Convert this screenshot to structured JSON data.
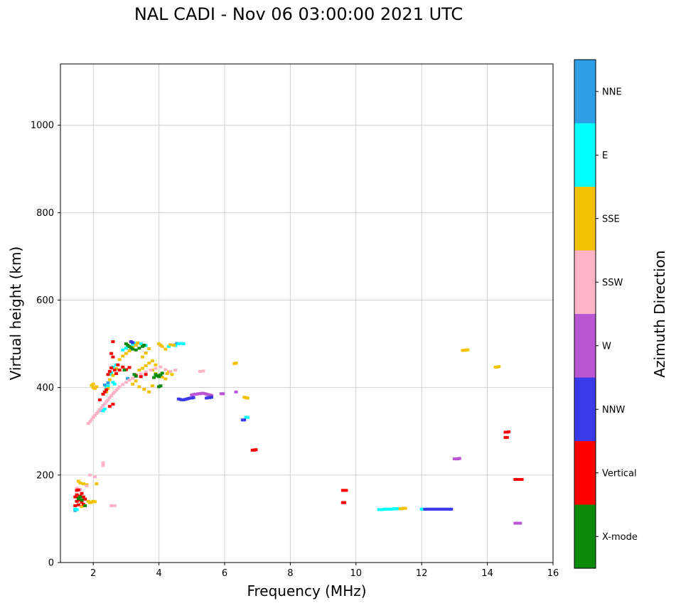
{
  "chart_data": {
    "type": "scatter",
    "title": "NAL CADI - Nov 06 03:00:00 2021 UTC",
    "xlabel": "Frequency (MHz)",
    "ylabel": "Virtual height (km)",
    "xlim": [
      1,
      16
    ],
    "ylim": [
      0,
      1140
    ],
    "xticks": [
      2,
      4,
      6,
      8,
      10,
      12,
      14,
      16
    ],
    "yticks": [
      0,
      200,
      400,
      600,
      800,
      1000
    ],
    "grid": true,
    "legend_position": "right-colorbar",
    "colorbar": {
      "label": "Azimuth Direction",
      "entries": [
        {
          "label": "NNE",
          "color": "#2E9FE6"
        },
        {
          "label": "E",
          "color": "#00FFFF"
        },
        {
          "label": "SSE",
          "color": "#F2C200"
        },
        {
          "label": "SSW",
          "color": "#FFB3C6"
        },
        {
          "label": "W",
          "color": "#BA55D3"
        },
        {
          "label": "NNW",
          "color": "#3A3AE8"
        },
        {
          "label": "Vertical",
          "color": "#FF0000"
        },
        {
          "label": "X-mode",
          "color": "#0B8A0B"
        }
      ]
    },
    "series": [
      {
        "name": "NNE",
        "color": "#2E9FE6",
        "points": [
          [
            1.45,
            119
          ],
          [
            2.2,
            348
          ],
          [
            2.35,
            406
          ],
          [
            2.45,
            411
          ],
          [
            3.05,
            421
          ],
          [
            4.5,
            498
          ],
          [
            4.55,
            501
          ]
        ]
      },
      {
        "name": "E",
        "color": "#00FFFF",
        "points": [
          [
            1.45,
            122
          ],
          [
            1.5,
            121
          ],
          [
            2.3,
            347
          ],
          [
            2.35,
            351
          ],
          [
            2.4,
            400
          ],
          [
            2.45,
            404
          ],
          [
            2.5,
            430
          ],
          [
            2.55,
            434
          ],
          [
            2.6,
            412
          ],
          [
            2.65,
            408
          ],
          [
            2.6,
            447
          ],
          [
            2.7,
            452
          ],
          [
            2.9,
            486
          ],
          [
            3.0,
            490
          ],
          [
            3.1,
            494
          ],
          [
            3.2,
            499
          ],
          [
            3.3,
            501
          ],
          [
            3.45,
            500
          ],
          [
            3.6,
            496
          ],
          [
            4.3,
            494
          ],
          [
            4.5,
            496
          ],
          [
            4.6,
            500
          ],
          [
            4.7,
            501
          ],
          [
            4.75,
            500
          ],
          [
            6.65,
            332
          ],
          [
            6.7,
            332
          ],
          [
            10.7,
            121
          ],
          [
            10.75,
            121
          ],
          [
            10.8,
            121
          ],
          [
            10.85,
            122
          ],
          [
            10.9,
            122
          ],
          [
            10.95,
            122
          ],
          [
            11.0,
            122
          ],
          [
            11.05,
            122
          ],
          [
            11.1,
            122
          ],
          [
            11.15,
            123
          ],
          [
            11.2,
            123
          ],
          [
            11.25,
            123
          ],
          [
            11.3,
            123
          ],
          [
            12.0,
            122
          ],
          [
            12.05,
            122
          ]
        ]
      },
      {
        "name": "SSE",
        "color": "#F2C200",
        "points": [
          [
            1.55,
            186
          ],
          [
            1.6,
            182
          ],
          [
            1.7,
            180
          ],
          [
            1.8,
            178
          ],
          [
            2.1,
            180
          ],
          [
            1.85,
            140
          ],
          [
            1.9,
            137
          ],
          [
            1.95,
            138
          ],
          [
            2.0,
            140
          ],
          [
            2.05,
            139
          ],
          [
            1.65,
            128
          ],
          [
            1.95,
            405
          ],
          [
            2.0,
            400
          ],
          [
            2.0,
            408
          ],
          [
            2.05,
            398
          ],
          [
            2.1,
            402
          ],
          [
            2.4,
            390
          ],
          [
            2.45,
            398
          ],
          [
            2.5,
            418
          ],
          [
            2.6,
            428
          ],
          [
            2.7,
            443
          ],
          [
            2.8,
            464
          ],
          [
            2.9,
            472
          ],
          [
            3.0,
            478
          ],
          [
            3.1,
            484
          ],
          [
            3.2,
            492
          ],
          [
            3.3,
            497
          ],
          [
            3.35,
            502
          ],
          [
            3.5,
            470
          ],
          [
            3.6,
            479
          ],
          [
            3.7,
            489
          ],
          [
            3.8,
            461
          ],
          [
            3.9,
            452
          ],
          [
            4.0,
            500
          ],
          [
            4.05,
            497
          ],
          [
            4.1,
            494
          ],
          [
            4.2,
            488
          ],
          [
            4.35,
            498
          ],
          [
            4.45,
            497
          ],
          [
            3.2,
            408
          ],
          [
            3.3,
            415
          ],
          [
            3.4,
            440
          ],
          [
            3.4,
            402
          ],
          [
            3.5,
            444
          ],
          [
            3.55,
            396
          ],
          [
            3.6,
            450
          ],
          [
            3.7,
            456
          ],
          [
            3.7,
            390
          ],
          [
            3.8,
            440
          ],
          [
            3.8,
            404
          ],
          [
            3.9,
            432
          ],
          [
            4.0,
            428
          ],
          [
            4.1,
            424
          ],
          [
            4.2,
            420
          ],
          [
            4.25,
            432
          ],
          [
            4.3,
            436
          ],
          [
            4.4,
            430
          ],
          [
            6.3,
            455
          ],
          [
            6.35,
            456
          ],
          [
            6.6,
            378
          ],
          [
            6.65,
            377
          ],
          [
            6.7,
            376
          ],
          [
            11.35,
            123
          ],
          [
            11.4,
            123
          ],
          [
            11.45,
            124
          ],
          [
            11.5,
            124
          ],
          [
            13.25,
            485
          ],
          [
            13.3,
            485
          ],
          [
            13.35,
            486
          ],
          [
            13.4,
            486
          ],
          [
            14.25,
            447
          ],
          [
            14.3,
            447
          ],
          [
            14.35,
            448
          ]
        ]
      },
      {
        "name": "SSW",
        "color": "#FFB3C6",
        "points": [
          [
            1.5,
            170
          ],
          [
            1.6,
            167
          ],
          [
            1.8,
            175
          ],
          [
            1.9,
            200
          ],
          [
            2.05,
            196
          ],
          [
            2.3,
            228
          ],
          [
            2.3,
            222
          ],
          [
            2.55,
            130
          ],
          [
            2.6,
            130
          ],
          [
            2.65,
            130
          ],
          [
            1.85,
            318
          ],
          [
            1.9,
            322
          ],
          [
            1.95,
            327
          ],
          [
            2.0,
            332
          ],
          [
            2.05,
            336
          ],
          [
            2.1,
            341
          ],
          [
            2.15,
            345
          ],
          [
            2.2,
            350
          ],
          [
            2.25,
            354
          ],
          [
            2.3,
            359
          ],
          [
            2.35,
            363
          ],
          [
            2.4,
            368
          ],
          [
            2.45,
            372
          ],
          [
            2.5,
            377
          ],
          [
            2.55,
            381
          ],
          [
            2.6,
            386
          ],
          [
            2.65,
            390
          ],
          [
            2.7,
            394
          ],
          [
            2.75,
            398
          ],
          [
            2.8,
            402
          ],
          [
            2.9,
            407
          ],
          [
            3.0,
            412
          ],
          [
            3.1,
            417
          ],
          [
            3.2,
            421
          ],
          [
            3.3,
            426
          ],
          [
            3.45,
            431
          ],
          [
            3.6,
            436
          ],
          [
            3.75,
            440
          ],
          [
            3.9,
            444
          ],
          [
            4.05,
            447
          ],
          [
            4.2,
            441
          ],
          [
            4.35,
            437
          ],
          [
            4.5,
            440
          ],
          [
            5.25,
            437
          ],
          [
            5.35,
            438
          ]
        ]
      },
      {
        "name": "W",
        "color": "#BA55D3",
        "points": [
          [
            5.0,
            383
          ],
          [
            5.05,
            384
          ],
          [
            5.1,
            385
          ],
          [
            5.15,
            385
          ],
          [
            5.2,
            386
          ],
          [
            5.25,
            386
          ],
          [
            5.3,
            387
          ],
          [
            5.35,
            387
          ],
          [
            5.4,
            386
          ],
          [
            5.45,
            385
          ],
          [
            5.5,
            384
          ],
          [
            5.55,
            383
          ],
          [
            5.6,
            382
          ],
          [
            5.9,
            386
          ],
          [
            5.95,
            386
          ],
          [
            6.35,
            390
          ],
          [
            13.0,
            237
          ],
          [
            13.05,
            237
          ],
          [
            13.1,
            237
          ],
          [
            13.15,
            238
          ],
          [
            14.85,
            90
          ],
          [
            14.9,
            90
          ],
          [
            14.95,
            90
          ],
          [
            15.0,
            90
          ]
        ]
      },
      {
        "name": "NNW",
        "color": "#3A3AE8",
        "points": [
          [
            3.15,
            505
          ],
          [
            3.2,
            503
          ],
          [
            4.6,
            374
          ],
          [
            4.65,
            373
          ],
          [
            4.7,
            372
          ],
          [
            4.75,
            372
          ],
          [
            4.8,
            373
          ],
          [
            4.85,
            374
          ],
          [
            4.9,
            375
          ],
          [
            4.95,
            376
          ],
          [
            5.0,
            376
          ],
          [
            5.05,
            377
          ],
          [
            5.45,
            376
          ],
          [
            5.5,
            377
          ],
          [
            5.55,
            377
          ],
          [
            5.6,
            378
          ],
          [
            6.55,
            326
          ],
          [
            6.6,
            326
          ],
          [
            12.1,
            122
          ],
          [
            12.15,
            122
          ],
          [
            12.2,
            122
          ],
          [
            12.25,
            122
          ],
          [
            12.3,
            122
          ],
          [
            12.35,
            122
          ],
          [
            12.4,
            122
          ],
          [
            12.45,
            122
          ],
          [
            12.5,
            122
          ],
          [
            12.55,
            122
          ],
          [
            12.6,
            122
          ],
          [
            12.65,
            122
          ],
          [
            12.7,
            122
          ],
          [
            12.75,
            122
          ],
          [
            12.8,
            122
          ],
          [
            12.85,
            122
          ],
          [
            12.9,
            122
          ]
        ]
      },
      {
        "name": "Vertical",
        "color": "#FF0000",
        "points": [
          [
            1.45,
            130
          ],
          [
            1.45,
            150
          ],
          [
            1.5,
            140
          ],
          [
            1.5,
            155
          ],
          [
            1.5,
            165
          ],
          [
            1.55,
            132
          ],
          [
            1.55,
            148
          ],
          [
            1.55,
            166
          ],
          [
            1.6,
            143
          ],
          [
            1.6,
            152
          ],
          [
            1.65,
            138
          ],
          [
            1.65,
            158
          ],
          [
            1.7,
            133
          ],
          [
            1.7,
            150
          ],
          [
            1.75,
            145
          ],
          [
            2.2,
            372
          ],
          [
            2.3,
            385
          ],
          [
            2.35,
            390
          ],
          [
            2.4,
            395
          ],
          [
            2.45,
            430
          ],
          [
            2.5,
            357
          ],
          [
            2.5,
            437
          ],
          [
            2.55,
            445
          ],
          [
            2.55,
            478
          ],
          [
            2.6,
            362
          ],
          [
            2.6,
            470
          ],
          [
            2.6,
            505
          ],
          [
            2.65,
            440
          ],
          [
            2.7,
            432
          ],
          [
            2.75,
            452
          ],
          [
            2.8,
            440
          ],
          [
            2.9,
            447
          ],
          [
            3.0,
            441
          ],
          [
            3.1,
            446
          ],
          [
            3.3,
            428
          ],
          [
            3.45,
            425
          ],
          [
            3.6,
            430
          ],
          [
            6.85,
            257
          ],
          [
            6.9,
            257
          ],
          [
            6.95,
            258
          ],
          [
            9.6,
            165
          ],
          [
            9.65,
            165
          ],
          [
            9.7,
            165
          ],
          [
            9.6,
            137
          ],
          [
            9.65,
            137
          ],
          [
            14.55,
            286
          ],
          [
            14.6,
            286
          ],
          [
            14.55,
            298
          ],
          [
            14.6,
            298
          ],
          [
            14.65,
            299
          ],
          [
            14.85,
            190
          ],
          [
            14.9,
            190
          ],
          [
            14.95,
            190
          ],
          [
            15.0,
            190
          ],
          [
            15.05,
            190
          ]
        ]
      },
      {
        "name": "X-mode",
        "color": "#0B8A0B",
        "points": [
          [
            1.55,
            146
          ],
          [
            1.6,
            150
          ],
          [
            1.65,
            143
          ],
          [
            1.75,
            130
          ],
          [
            2.95,
            440
          ],
          [
            3.0,
            500
          ],
          [
            3.05,
            497
          ],
          [
            3.1,
            494
          ],
          [
            3.15,
            491
          ],
          [
            3.2,
            488
          ],
          [
            3.25,
            430
          ],
          [
            3.3,
            426
          ],
          [
            3.3,
            486
          ],
          [
            3.4,
            490
          ],
          [
            3.5,
            494
          ],
          [
            3.55,
            497
          ],
          [
            3.85,
            423
          ],
          [
            3.9,
            430
          ],
          [
            3.95,
            427
          ],
          [
            4.0,
            402
          ],
          [
            4.0,
            425
          ],
          [
            4.05,
            404
          ],
          [
            4.05,
            429
          ],
          [
            4.1,
            433
          ]
        ]
      }
    ]
  }
}
